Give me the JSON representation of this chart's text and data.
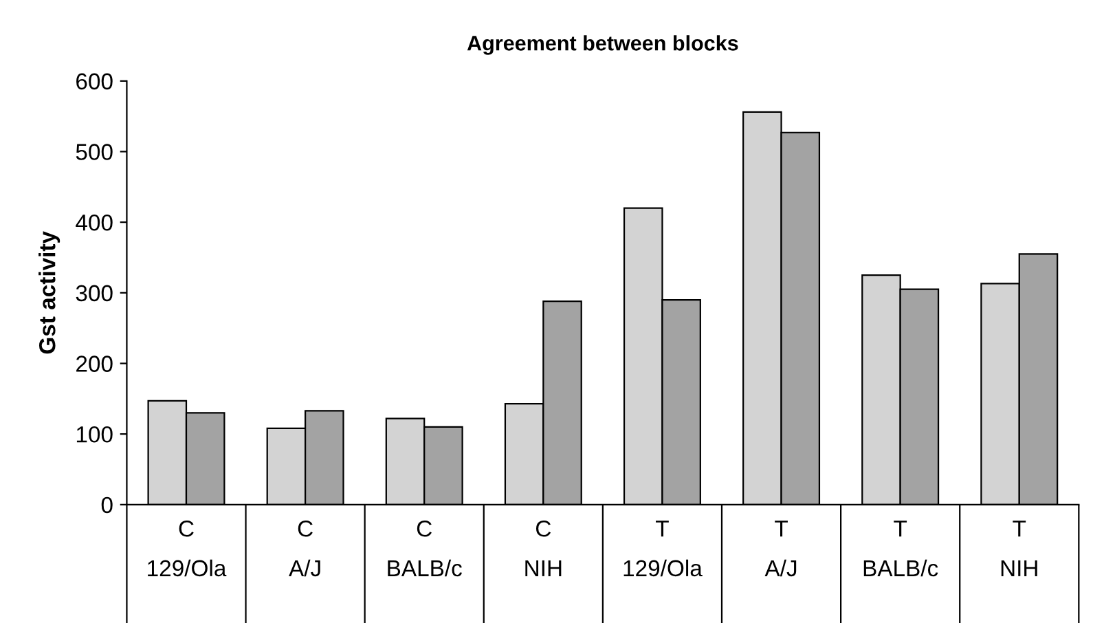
{
  "chart_data": {
    "type": "bar",
    "title": "Agreement between blocks",
    "ylabel": "Gst activity",
    "categories": [
      "C\n129/Ola",
      "C\nA/J",
      "C\nBALB/c",
      "C\nNIH",
      "T\n129/Ola",
      "T\nA/J",
      "T\nBALB/c",
      "T\nNIH"
    ],
    "series": [
      {
        "color": "#d3d3d3",
        "values": [
          147,
          108,
          122,
          143,
          420,
          556,
          325,
          313
        ]
      },
      {
        "color": "#a3a3a3",
        "values": [
          130,
          133,
          110,
          288,
          290,
          527,
          305,
          355
        ]
      }
    ],
    "ylim": [
      0,
      600
    ],
    "yticks": [
      0,
      100,
      200,
      300,
      400,
      500,
      600
    ],
    "grid": false,
    "legend": false
  }
}
